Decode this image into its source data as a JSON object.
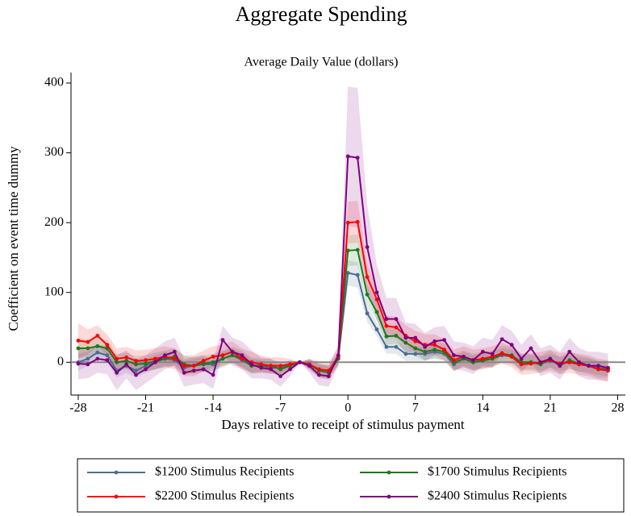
{
  "chart_data": {
    "type": "line",
    "title": "Aggregate Spending",
    "subtitle": "Average Daily Value (dollars)",
    "x_label": "Days relative to receipt of stimulus payment",
    "y_label": "Coefficient on event time dummy",
    "x": [
      -28,
      -27,
      -26,
      -25,
      -24,
      -23,
      -22,
      -21,
      -20,
      -19,
      -18,
      -17,
      -16,
      -15,
      -14,
      -13,
      -12,
      -11,
      -10,
      -9,
      -8,
      -7,
      -6,
      -5,
      -4,
      -3,
      -2,
      -1,
      0,
      1,
      2,
      3,
      4,
      5,
      6,
      7,
      8,
      9,
      10,
      11,
      12,
      13,
      14,
      15,
      16,
      17,
      18,
      19,
      20,
      21,
      22,
      23,
      24,
      25,
      26,
      27
    ],
    "xlim": [
      -28.75,
      28.8
    ],
    "xticks": [
      -28,
      -21,
      -14,
      -7,
      0,
      7,
      14,
      21,
      28
    ],
    "ylim": [
      -47,
      415
    ],
    "yticks": [
      0,
      100,
      200,
      300,
      400
    ],
    "reference_line": 0,
    "series": [
      {
        "name": "$1200 Stimulus Recipients",
        "color": "#4a6e8c",
        "values": [
          0,
          5,
          14,
          10,
          -12,
          -5,
          -12,
          -5,
          0,
          5,
          3,
          -8,
          -5,
          -3,
          -3,
          5,
          10,
          3,
          -5,
          -5,
          -8,
          -8,
          -3,
          0,
          -3,
          -10,
          -12,
          5,
          128,
          125,
          70,
          47,
          22,
          22,
          12,
          12,
          12,
          15,
          12,
          -3,
          5,
          0,
          2,
          5,
          10,
          8,
          0,
          0,
          -2,
          2,
          -2,
          0,
          -3,
          -5,
          -8,
          -10
        ],
        "ci_halfwidth": [
          12,
          10,
          10,
          10,
          10,
          10,
          10,
          10,
          10,
          10,
          10,
          10,
          10,
          10,
          10,
          10,
          10,
          10,
          10,
          8,
          8,
          8,
          6,
          0,
          6,
          8,
          8,
          8,
          18,
          18,
          12,
          10,
          10,
          10,
          10,
          10,
          10,
          10,
          10,
          10,
          10,
          10,
          10,
          10,
          10,
          10,
          10,
          10,
          10,
          10,
          10,
          10,
          10,
          10,
          10,
          10
        ]
      },
      {
        "name": "$1700 Stimulus Recipients",
        "color": "#1a7a1a",
        "values": [
          20,
          20,
          23,
          20,
          0,
          2,
          -3,
          -2,
          2,
          5,
          8,
          -3,
          -5,
          -2,
          0,
          5,
          10,
          5,
          -5,
          -5,
          -5,
          -10,
          -5,
          0,
          -3,
          -12,
          -15,
          5,
          160,
          161,
          97,
          72,
          37,
          38,
          28,
          20,
          15,
          18,
          15,
          0,
          5,
          0,
          3,
          5,
          12,
          10,
          0,
          0,
          -3,
          5,
          -5,
          3,
          -2,
          -5,
          -10,
          -10
        ],
        "ci_halfwidth": [
          15,
          12,
          12,
          12,
          12,
          12,
          12,
          12,
          12,
          12,
          12,
          12,
          12,
          12,
          12,
          12,
          12,
          12,
          12,
          10,
          10,
          10,
          7,
          0,
          7,
          10,
          10,
          10,
          22,
          22,
          15,
          12,
          12,
          12,
          12,
          12,
          12,
          12,
          12,
          12,
          12,
          12,
          12,
          12,
          12,
          12,
          12,
          12,
          12,
          12,
          12,
          12,
          12,
          12,
          12,
          12
        ]
      },
      {
        "name": "$2200 Stimulus Recipients",
        "color": "#ff0000",
        "values": [
          31,
          29,
          38,
          25,
          5,
          7,
          2,
          3,
          5,
          8,
          5,
          -5,
          -5,
          2,
          8,
          10,
          15,
          5,
          0,
          -3,
          -5,
          -5,
          -3,
          0,
          -3,
          -10,
          -12,
          8,
          200,
          201,
          122,
          90,
          52,
          50,
          38,
          30,
          25,
          25,
          18,
          3,
          8,
          3,
          5,
          8,
          13,
          8,
          -3,
          -2,
          0,
          3,
          -2,
          0,
          -3,
          -5,
          -10,
          -12
        ],
        "ci_halfwidth": [
          25,
          18,
          15,
          15,
          15,
          15,
          15,
          15,
          15,
          15,
          15,
          15,
          15,
          15,
          15,
          15,
          15,
          15,
          15,
          12,
          12,
          12,
          8,
          0,
          8,
          12,
          12,
          12,
          30,
          30,
          20,
          15,
          15,
          15,
          15,
          15,
          15,
          15,
          15,
          15,
          15,
          15,
          15,
          15,
          15,
          15,
          15,
          15,
          15,
          15,
          15,
          15,
          15,
          15,
          15,
          15
        ]
      },
      {
        "name": "$2400 Stimulus Recipients",
        "color": "#800080",
        "values": [
          -2,
          -3,
          5,
          3,
          -15,
          -3,
          -18,
          -10,
          0,
          10,
          15,
          -15,
          -12,
          -10,
          -18,
          32,
          15,
          10,
          -3,
          -8,
          -10,
          -20,
          -10,
          0,
          -5,
          -18,
          -20,
          10,
          295,
          293,
          165,
          100,
          62,
          62,
          35,
          35,
          22,
          30,
          32,
          10,
          8,
          3,
          15,
          12,
          33,
          25,
          5,
          20,
          0,
          5,
          -5,
          15,
          0,
          -5,
          -5,
          -8
        ],
        "ci_halfwidth": [
          22,
          20,
          20,
          20,
          25,
          20,
          22,
          20,
          20,
          20,
          20,
          20,
          20,
          20,
          20,
          20,
          20,
          20,
          20,
          15,
          15,
          15,
          10,
          0,
          10,
          15,
          15,
          15,
          100,
          100,
          60,
          40,
          30,
          30,
          22,
          20,
          20,
          20,
          20,
          20,
          20,
          20,
          20,
          20,
          20,
          20,
          20,
          20,
          20,
          20,
          20,
          20,
          20,
          20,
          20,
          20
        ]
      }
    ]
  }
}
